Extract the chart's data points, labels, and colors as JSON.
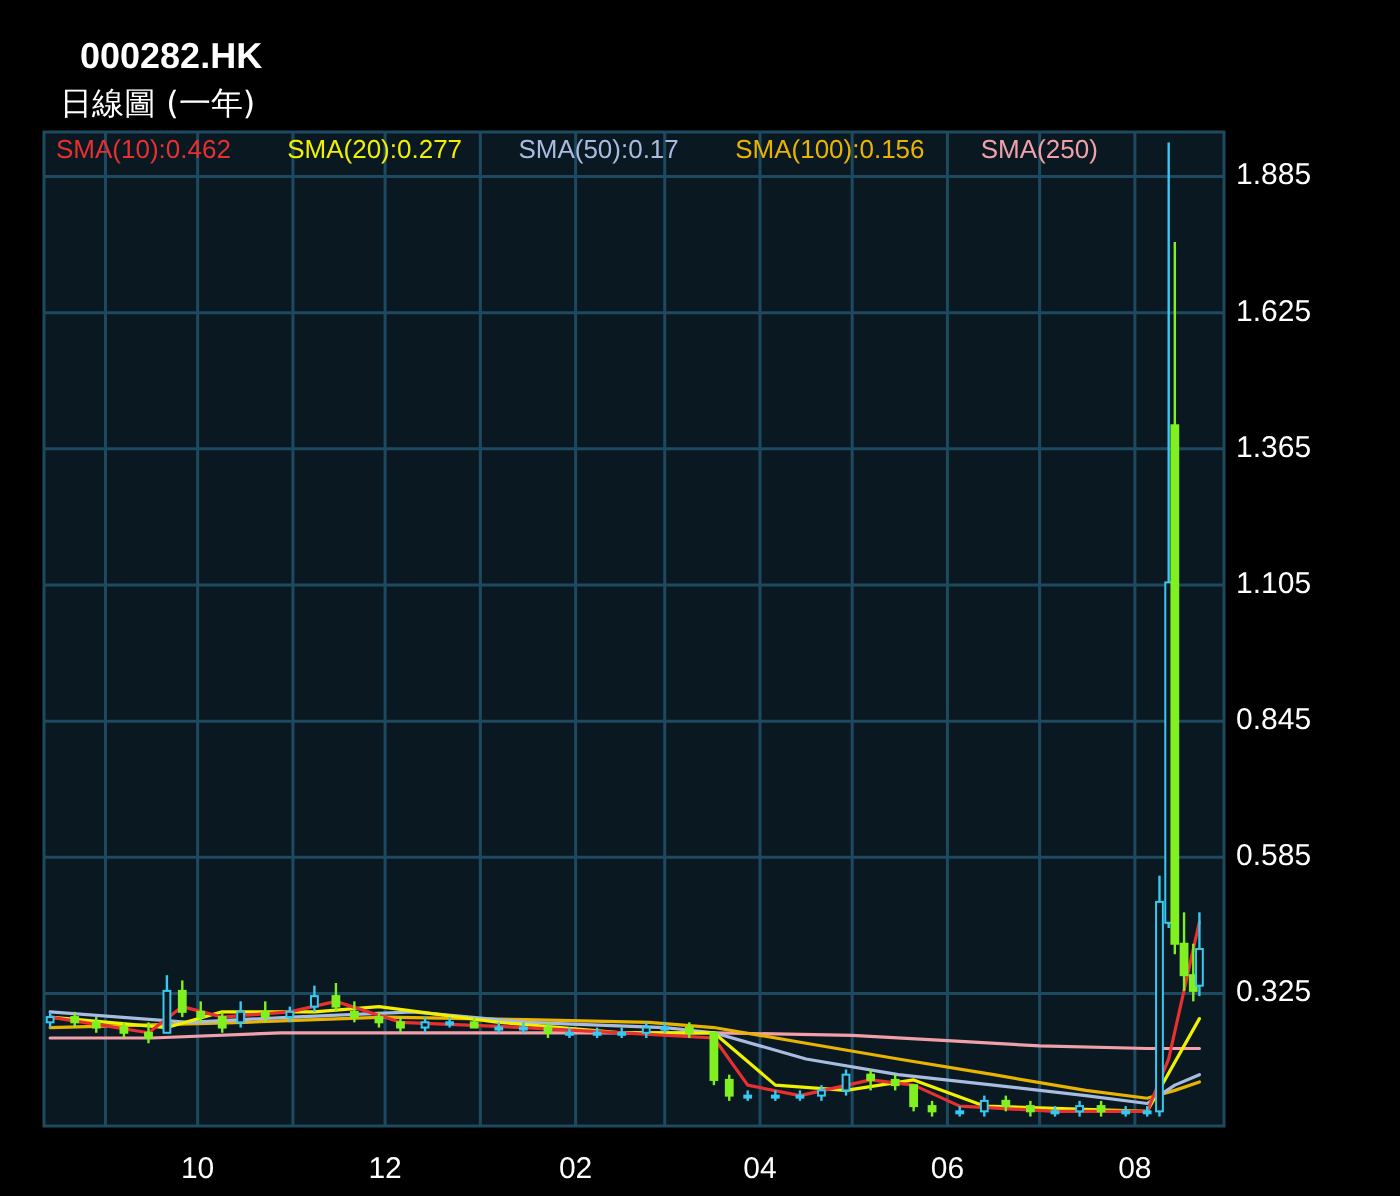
{
  "chart_data": {
    "type": "candlestick",
    "title": "000282.HK",
    "subtitle": "日線圖 (一年)",
    "xlim": [
      "2007-08-12",
      "2008-08-30"
    ],
    "ylim": [
      0.072,
      1.97
    ],
    "xticks": [
      {
        "value": "2007-09-01",
        "label": null
      },
      {
        "value": "2007-10-01",
        "label": "10"
      },
      {
        "value": "2007-11-01",
        "label": null
      },
      {
        "value": "2007-12-01",
        "label": "12"
      },
      {
        "value": "2008-01-01",
        "label": null
      },
      {
        "value": "2008-02-01",
        "label": "02"
      },
      {
        "value": "2008-03-01",
        "label": null
      },
      {
        "value": "2008-04-01",
        "label": "04"
      },
      {
        "value": "2008-05-01",
        "label": null
      },
      {
        "value": "2008-06-01",
        "label": "06"
      },
      {
        "value": "2008-07-01",
        "label": null
      },
      {
        "value": "2008-08-01",
        "label": "08"
      }
    ],
    "yticks": [
      0.325,
      0.585,
      0.845,
      1.105,
      1.365,
      1.625,
      1.885
    ],
    "grid": true,
    "legend": "top",
    "series": [
      {
        "type": "line",
        "name": "SMA(250)",
        "color": "#f0a0a8",
        "x": [
          "2007-08-14",
          "2007-09-16",
          "2007-10-28",
          "2007-12-16",
          "2008-02-01",
          "2008-03-17",
          "2008-05-01",
          "2008-06-01",
          "2008-07-01",
          "2008-08-05",
          "2008-08-22"
        ],
        "values": [
          0.24,
          0.24,
          0.25,
          0.25,
          0.25,
          0.25,
          0.245,
          0.235,
          0.225,
          0.22,
          0.22
        ]
      },
      {
        "type": "line",
        "name": "SMA(100):0.156",
        "color": "#e8b400",
        "x": [
          "2007-08-14",
          "2007-10-16",
          "2007-12-01",
          "2008-01-16",
          "2008-02-25",
          "2008-03-17",
          "2008-04-16",
          "2008-05-16",
          "2008-06-16",
          "2008-07-16",
          "2008-08-05",
          "2008-08-14",
          "2008-08-22"
        ],
        "values": [
          0.26,
          0.27,
          0.28,
          0.275,
          0.27,
          0.26,
          0.23,
          0.2,
          0.17,
          0.14,
          0.125,
          0.14,
          0.156
        ]
      },
      {
        "type": "line",
        "name": "SMA(50):0.17",
        "color": "#a8bce0",
        "x": [
          "2007-08-14",
          "2007-09-28",
          "2007-11-01",
          "2007-12-10",
          "2008-01-16",
          "2008-03-01",
          "2008-03-17",
          "2008-04-16",
          "2008-05-16",
          "2008-06-16",
          "2008-07-16",
          "2008-08-05",
          "2008-08-14",
          "2008-08-22"
        ],
        "values": [
          0.29,
          0.27,
          0.28,
          0.29,
          0.27,
          0.26,
          0.25,
          0.2,
          0.17,
          0.15,
          0.13,
          0.115,
          0.15,
          0.17
        ]
      },
      {
        "type": "line",
        "name": "SMA(20):0.277",
        "color": "#f0f000",
        "x": [
          "2007-08-14",
          "2007-09-21",
          "2007-10-09",
          "2007-11-08",
          "2007-11-29",
          "2008-01-07",
          "2008-02-16",
          "2008-03-17",
          "2008-04-06",
          "2008-04-29",
          "2008-05-21",
          "2008-06-13",
          "2008-08-05",
          "2008-08-22"
        ],
        "values": [
          0.28,
          0.26,
          0.29,
          0.29,
          0.3,
          0.27,
          0.25,
          0.25,
          0.15,
          0.14,
          0.16,
          0.11,
          0.1,
          0.277
        ]
      },
      {
        "type": "line",
        "name": "SMA(10):0.462",
        "color": "#e83030",
        "x": [
          "2007-08-14",
          "2007-09-15",
          "2007-09-26",
          "2007-10-09",
          "2007-10-31",
          "2007-11-15",
          "2007-12-06",
          "2008-01-15",
          "2008-02-16",
          "2008-03-17",
          "2008-03-28",
          "2008-04-14",
          "2008-05-07",
          "2008-05-21",
          "2008-06-05",
          "2008-07-06",
          "2008-08-05",
          "2008-08-12",
          "2008-08-22"
        ],
        "values": [
          0.28,
          0.25,
          0.3,
          0.28,
          0.29,
          0.31,
          0.27,
          0.26,
          0.25,
          0.24,
          0.15,
          0.13,
          0.16,
          0.15,
          0.11,
          0.1,
          0.1,
          0.2,
          0.462
        ]
      },
      {
        "x": [
          "2007-08-14",
          "2007-08-22",
          "2007-08-29",
          "2007-09-07",
          "2007-09-15",
          "2007-09-21",
          "2007-09-26",
          "2007-10-02",
          "2007-10-09",
          "2007-10-15",
          "2007-10-23",
          "2007-10-31",
          "2007-11-08",
          "2007-11-15",
          "2007-11-21",
          "2007-11-29",
          "2007-12-06",
          "2007-12-14",
          "2007-12-22",
          "2007-12-30",
          "2008-01-07",
          "2008-01-15",
          "2008-01-23",
          "2008-01-30",
          "2008-02-08",
          "2008-02-16",
          "2008-02-24",
          "2008-03-01",
          "2008-03-09",
          "2008-03-17",
          "2008-03-22",
          "2008-03-28",
          "2008-04-06",
          "2008-04-14",
          "2008-04-21",
          "2008-04-29",
          "2008-05-07",
          "2008-05-15",
          "2008-05-21",
          "2008-05-27",
          "2008-06-05",
          "2008-06-13",
          "2008-06-20",
          "2008-06-28",
          "2008-07-06",
          "2008-07-14",
          "2008-07-21",
          "2008-07-29",
          "2008-08-05",
          "2008-08-09",
          "2008-08-12",
          "2008-08-14",
          "2008-08-17",
          "2008-08-20",
          "2008-08-22"
        ],
        "ohlc": [
          [
            0.27,
            0.29,
            0.26,
            0.28
          ],
          [
            0.28,
            0.29,
            0.26,
            0.27
          ],
          [
            0.27,
            0.28,
            0.25,
            0.26
          ],
          [
            0.26,
            0.27,
            0.24,
            0.25
          ],
          [
            0.25,
            0.27,
            0.23,
            0.24
          ],
          [
            0.25,
            0.36,
            0.25,
            0.33
          ],
          [
            0.33,
            0.35,
            0.28,
            0.29
          ],
          [
            0.29,
            0.31,
            0.27,
            0.28
          ],
          [
            0.28,
            0.29,
            0.25,
            0.26
          ],
          [
            0.27,
            0.31,
            0.26,
            0.29
          ],
          [
            0.29,
            0.31,
            0.27,
            0.28
          ],
          [
            0.28,
            0.3,
            0.27,
            0.29
          ],
          [
            0.3,
            0.34,
            0.29,
            0.32
          ],
          [
            0.32,
            0.345,
            0.29,
            0.3
          ],
          [
            0.29,
            0.31,
            0.27,
            0.28
          ],
          [
            0.28,
            0.29,
            0.26,
            0.27
          ],
          [
            0.27,
            0.28,
            0.25,
            0.26
          ],
          [
            0.26,
            0.28,
            0.25,
            0.27
          ],
          [
            0.27,
            0.28,
            0.26,
            0.27
          ],
          [
            0.27,
            0.28,
            0.26,
            0.26
          ],
          [
            0.26,
            0.27,
            0.25,
            0.26
          ],
          [
            0.26,
            0.27,
            0.25,
            0.26
          ],
          [
            0.26,
            0.27,
            0.24,
            0.25
          ],
          [
            0.25,
            0.26,
            0.24,
            0.25
          ],
          [
            0.25,
            0.26,
            0.24,
            0.25
          ],
          [
            0.25,
            0.26,
            0.24,
            0.25
          ],
          [
            0.25,
            0.27,
            0.24,
            0.26
          ],
          [
            0.26,
            0.27,
            0.25,
            0.26
          ],
          [
            0.26,
            0.27,
            0.24,
            0.25
          ],
          [
            0.25,
            0.25,
            0.15,
            0.16
          ],
          [
            0.16,
            0.17,
            0.12,
            0.13
          ],
          [
            0.13,
            0.14,
            0.12,
            0.13
          ],
          [
            0.13,
            0.14,
            0.12,
            0.13
          ],
          [
            0.13,
            0.14,
            0.12,
            0.13
          ],
          [
            0.13,
            0.15,
            0.12,
            0.14
          ],
          [
            0.14,
            0.18,
            0.13,
            0.17
          ],
          [
            0.17,
            0.18,
            0.14,
            0.16
          ],
          [
            0.16,
            0.17,
            0.14,
            0.15
          ],
          [
            0.15,
            0.15,
            0.1,
            0.11
          ],
          [
            0.11,
            0.12,
            0.09,
            0.1
          ],
          [
            0.1,
            0.11,
            0.09,
            0.1
          ],
          [
            0.1,
            0.13,
            0.09,
            0.12
          ],
          [
            0.12,
            0.13,
            0.1,
            0.11
          ],
          [
            0.11,
            0.12,
            0.09,
            0.1
          ],
          [
            0.1,
            0.11,
            0.09,
            0.1
          ],
          [
            0.1,
            0.12,
            0.09,
            0.11
          ],
          [
            0.11,
            0.12,
            0.09,
            0.1
          ],
          [
            0.1,
            0.11,
            0.09,
            0.1
          ],
          [
            0.1,
            0.11,
            0.09,
            0.1
          ],
          [
            0.1,
            0.55,
            0.09,
            0.5
          ],
          [
            0.46,
            1.95,
            0.45,
            1.11
          ],
          [
            1.41,
            1.76,
            0.4,
            0.42
          ],
          [
            0.42,
            0.48,
            0.33,
            0.36
          ],
          [
            0.36,
            0.42,
            0.31,
            0.33
          ],
          [
            0.34,
            0.48,
            0.32,
            0.41
          ]
        ],
        "colors": [
          "#38c8f0",
          "#80f020",
          "#80f020",
          "#80f020",
          "#80f020",
          "#38c8f0",
          "#80f020",
          "#80f020",
          "#80f020",
          "#38c8f0",
          "#80f020",
          "#38c8f0",
          "#38c8f0",
          "#80f020",
          "#80f020",
          "#80f020",
          "#80f020",
          "#38c8f0",
          "#38c8f0",
          "#80f020",
          "#38c8f0",
          "#38c8f0",
          "#80f020",
          "#38c8f0",
          "#38c8f0",
          "#38c8f0",
          "#38c8f0",
          "#38c8f0",
          "#80f020",
          "#80f020",
          "#80f020",
          "#38c8f0",
          "#38c8f0",
          "#38c8f0",
          "#38c8f0",
          "#38c8f0",
          "#80f020",
          "#80f020",
          "#80f020",
          "#80f020",
          "#38c8f0",
          "#38c8f0",
          "#80f020",
          "#80f020",
          "#38c8f0",
          "#38c8f0",
          "#80f020",
          "#38c8f0",
          "#38c8f0",
          "#38c8f0",
          "#38c8f0",
          "#80f020",
          "#80f020",
          "#80f020",
          "#38c8f0"
        ]
      }
    ]
  }
}
